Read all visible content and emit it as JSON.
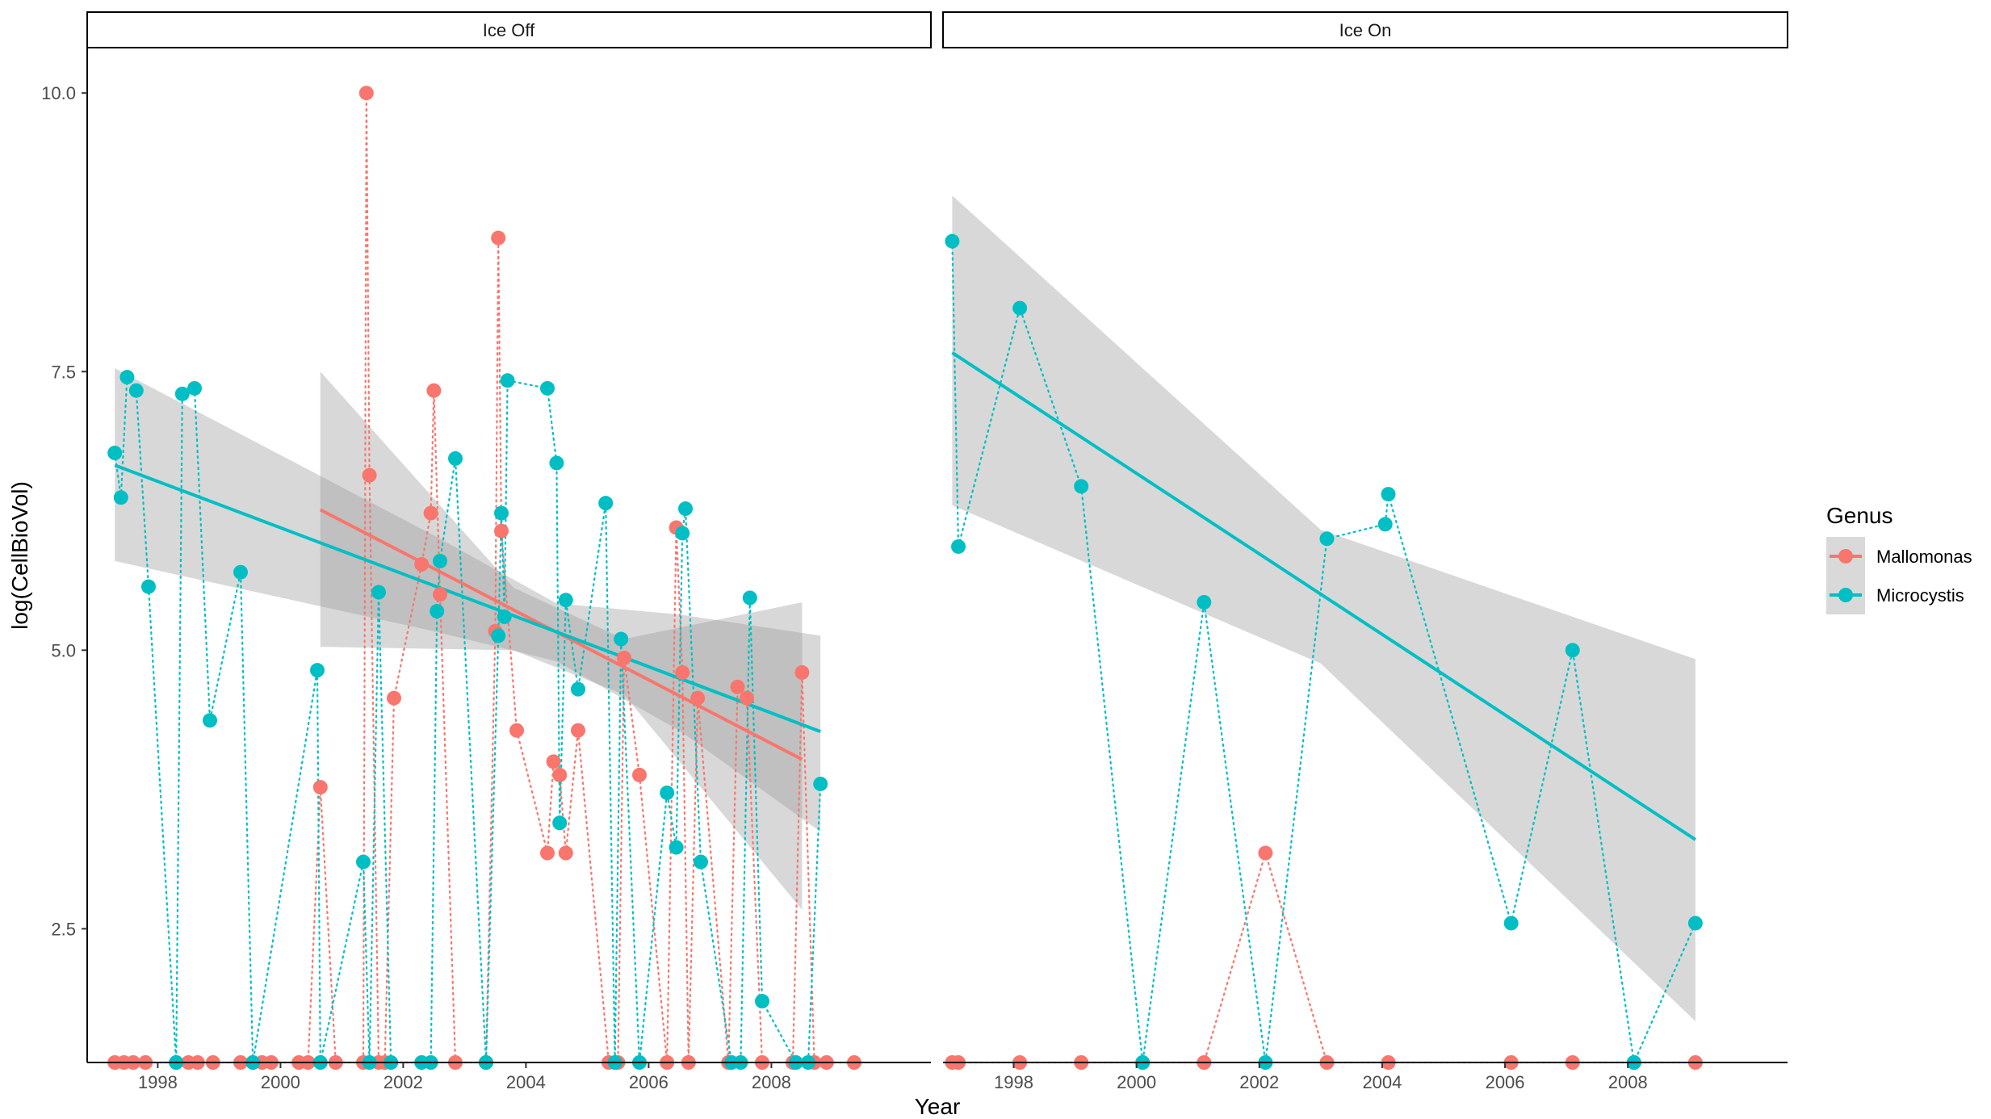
{
  "chart_data": {
    "type": "scatter",
    "xlabel": "Year",
    "ylabel": "log(CellBioVol)",
    "xlim": [
      1996.85,
      2010.6
    ],
    "ylim": [
      1.3,
      10.4
    ],
    "x_ticks": [
      1998,
      2000,
      2002,
      2004,
      2006,
      2008
    ],
    "y_ticks": [
      2.5,
      5.0,
      7.5,
      10.0
    ],
    "y_tick_labels": [
      "2.5",
      "5.0",
      "7.5",
      "10.0"
    ],
    "legend": {
      "title": "Genus",
      "position": "right",
      "entries": [
        {
          "label": "Mallomonas",
          "color": "#F8766D"
        },
        {
          "label": "Microcystis",
          "color": "#00BFC4"
        }
      ]
    },
    "colors": {
      "Mallomonas": "#F8766D",
      "Microcystis": "#00BFC4",
      "ribbon": "#999999",
      "panel_border": "#000000"
    },
    "facets": [
      {
        "strip": "Ice Off",
        "series": [
          {
            "name": "Mallomonas",
            "points": [
              [
                1997.3,
                1.3
              ],
              [
                1997.45,
                1.3
              ],
              [
                1997.6,
                1.3
              ],
              [
                1997.8,
                1.3
              ],
              [
                1998.3,
                1.3
              ],
              [
                1998.5,
                1.3
              ],
              [
                1998.65,
                1.3
              ],
              [
                1998.9,
                1.3
              ],
              [
                1999.35,
                1.3
              ],
              [
                1999.55,
                1.3
              ],
              [
                1999.7,
                1.3
              ],
              [
                1999.85,
                1.3
              ],
              [
                2000.3,
                1.3
              ],
              [
                2000.45,
                1.3
              ],
              [
                2000.65,
                3.77
              ],
              [
                2000.9,
                1.3
              ],
              [
                2001.35,
                1.3
              ],
              [
                2001.4,
                10.0
              ],
              [
                2001.45,
                6.57
              ],
              [
                2001.6,
                1.3
              ],
              [
                2001.7,
                1.3
              ],
              [
                2001.85,
                4.57
              ],
              [
                2002.3,
                5.77
              ],
              [
                2002.45,
                6.23
              ],
              [
                2002.5,
                7.33
              ],
              [
                2002.6,
                5.5
              ],
              [
                2002.85,
                1.3
              ],
              [
                2003.35,
                1.3
              ],
              [
                2003.5,
                5.17
              ],
              [
                2003.55,
                8.7
              ],
              [
                2003.6,
                6.07
              ],
              [
                2003.85,
                4.28
              ],
              [
                2004.35,
                3.18
              ],
              [
                2004.45,
                4.0
              ],
              [
                2004.55,
                3.88
              ],
              [
                2004.65,
                3.18
              ],
              [
                2004.85,
                4.28
              ],
              [
                2005.35,
                1.3
              ],
              [
                2005.5,
                1.3
              ],
              [
                2005.6,
                4.93
              ],
              [
                2005.85,
                3.88
              ],
              [
                2006.3,
                1.3
              ],
              [
                2006.45,
                6.1
              ],
              [
                2006.55,
                4.8
              ],
              [
                2006.65,
                1.3
              ],
              [
                2006.8,
                4.57
              ],
              [
                2007.3,
                1.3
              ],
              [
                2007.45,
                4.67
              ],
              [
                2007.6,
                4.57
              ],
              [
                2007.85,
                1.3
              ],
              [
                2008.35,
                1.3
              ],
              [
                2008.5,
                4.8
              ],
              [
                2008.7,
                1.3
              ],
              [
                2008.9,
                1.3
              ],
              [
                2009.35,
                1.3
              ]
            ],
            "trend": {
              "x": [
                2000.65,
                2008.5
              ],
              "y": [
                6.26,
                4.02
              ]
            },
            "ribbon": {
              "x": [
                2000.65,
                2003.8,
                2005.6,
                2008.5
              ],
              "upper": [
                7.5,
                5.56,
                5.1,
                5.43
              ],
              "lower": [
                5.03,
                5.0,
                4.6,
                2.67
              ]
            }
          },
          {
            "name": "Microcystis",
            "points": [
              [
                1997.3,
                6.77
              ],
              [
                1997.4,
                6.37
              ],
              [
                1997.5,
                7.45
              ],
              [
                1997.65,
                7.33
              ],
              [
                1997.85,
                5.57
              ],
              [
                1998.3,
                1.3
              ],
              [
                1998.4,
                7.3
              ],
              [
                1998.6,
                7.35
              ],
              [
                1998.85,
                4.37
              ],
              [
                1999.35,
                5.7
              ],
              [
                1999.55,
                1.3
              ],
              [
                2000.6,
                4.82
              ],
              [
                2000.65,
                1.3
              ],
              [
                2001.35,
                3.1
              ],
              [
                2001.45,
                1.3
              ],
              [
                2001.6,
                5.52
              ],
              [
                2001.8,
                1.3
              ],
              [
                2002.3,
                1.3
              ],
              [
                2002.45,
                1.3
              ],
              [
                2002.55,
                5.35
              ],
              [
                2002.6,
                5.8
              ],
              [
                2002.85,
                6.72
              ],
              [
                2003.35,
                1.3
              ],
              [
                2003.55,
                5.13
              ],
              [
                2003.6,
                6.23
              ],
              [
                2003.65,
                5.3
              ],
              [
                2003.7,
                7.42
              ],
              [
                2004.35,
                7.35
              ],
              [
                2004.5,
                6.68
              ],
              [
                2004.55,
                3.45
              ],
              [
                2004.65,
                5.45
              ],
              [
                2004.85,
                4.65
              ],
              [
                2005.3,
                6.32
              ],
              [
                2005.45,
                1.3
              ],
              [
                2005.55,
                5.1
              ],
              [
                2005.85,
                1.3
              ],
              [
                2006.3,
                3.72
              ],
              [
                2006.45,
                3.23
              ],
              [
                2006.55,
                6.05
              ],
              [
                2006.6,
                6.27
              ],
              [
                2006.85,
                3.1
              ],
              [
                2007.35,
                1.3
              ],
              [
                2007.5,
                1.3
              ],
              [
                2007.65,
                5.47
              ],
              [
                2007.85,
                1.85
              ],
              [
                2008.4,
                1.3
              ],
              [
                2008.6,
                1.3
              ],
              [
                2008.8,
                3.8
              ]
            ],
            "trend": {
              "x": [
                1997.3,
                2008.8
              ],
              "y": [
                6.66,
                4.27
              ]
            },
            "ribbon": {
              "x": [
                1997.3,
                2002.5,
                2004.5,
                2006.5,
                2008.8
              ],
              "upper": [
                7.53,
                6.03,
                5.42,
                5.32,
                5.13
              ],
              "lower": [
                5.8,
                5.17,
                4.9,
                4.28,
                3.37
              ]
            }
          }
        ]
      },
      {
        "strip": "Ice On",
        "series": [
          {
            "name": "Mallomonas",
            "points": [
              [
                1997.0,
                1.3
              ],
              [
                1997.1,
                1.3
              ],
              [
                1998.1,
                1.3
              ],
              [
                1999.1,
                1.3
              ],
              [
                2000.1,
                1.3
              ],
              [
                2001.1,
                1.3
              ],
              [
                2002.1,
                3.18
              ],
              [
                2003.1,
                1.3
              ],
              [
                2004.1,
                1.3
              ],
              [
                2006.1,
                1.3
              ],
              [
                2007.1,
                1.3
              ],
              [
                2008.1,
                1.3
              ],
              [
                2009.1,
                1.3
              ]
            ]
          },
          {
            "name": "Microcystis",
            "points": [
              [
                1997.0,
                8.67
              ],
              [
                1997.1,
                5.93
              ],
              [
                1998.1,
                8.07
              ],
              [
                1999.1,
                6.47
              ],
              [
                2000.1,
                1.3
              ],
              [
                2001.1,
                5.43
              ],
              [
                2002.1,
                1.3
              ],
              [
                2003.1,
                6.0
              ],
              [
                2004.05,
                6.13
              ],
              [
                2004.1,
                6.4
              ],
              [
                2006.1,
                2.55
              ],
              [
                2007.1,
                5.0
              ],
              [
                2008.1,
                1.3
              ],
              [
                2009.1,
                2.55
              ]
            ],
            "trend": {
              "x": [
                1997.0,
                2009.1
              ],
              "y": [
                7.67,
                3.3
              ]
            },
            "ribbon": {
              "x": [
                1997.0,
                2003.0,
                2009.1
              ],
              "upper": [
                9.08,
                6.08,
                4.92
              ],
              "lower": [
                6.3,
                4.88,
                1.67
              ]
            }
          }
        ]
      }
    ]
  }
}
